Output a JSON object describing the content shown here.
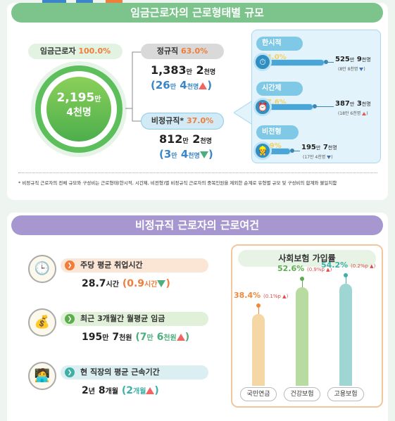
{
  "section1": {
    "title": "임금근로자의 근로형태별 규모",
    "total": {
      "label": "임금근로자",
      "pct": "100.0%",
      "value_main": "2,195",
      "value_unit": "만",
      "value_sub": "4천명"
    },
    "regular": {
      "label": "정규직",
      "pct": "63.0%",
      "value_a": "1,383",
      "unit_a": "만",
      "value_b": "2",
      "unit_b": "천명",
      "change_a": "26",
      "change_unit_a": "만",
      "change_b": "4",
      "change_unit_b": "천명",
      "direction": "up"
    },
    "nonregular": {
      "label": "비정규직*",
      "pct": "37.0%",
      "value_a": "812",
      "unit_a": "만",
      "value_b": "2",
      "unit_b": "천명",
      "change_a": "3",
      "change_unit_a": "만",
      "change_b": "4",
      "change_unit_b": "천명",
      "direction": "down"
    },
    "subtypes": [
      {
        "label": "한시적",
        "pct": "24.0%",
        "value_a": "525",
        "unit_a": "만",
        "value_b": "9",
        "unit_b": "천명",
        "note": "(8만 8천명",
        "direction": "down",
        "icon": "clock-icon"
      },
      {
        "label": "시간제",
        "pct": "17.6%",
        "value_a": "387",
        "unit_a": "만",
        "value_b": "3",
        "unit_b": "천명",
        "note": "(18만 6천명",
        "direction": "up",
        "icon": "alarm-icon"
      },
      {
        "label": "비전형",
        "pct": "8.9%",
        "value_a": "195",
        "unit_a": "만",
        "value_b": "7",
        "unit_b": "천명",
        "note": "(17만 4천명",
        "direction": "down",
        "icon": "worker-icon"
      }
    ],
    "footnote": "* 비정규직 근로자의 전체 규모와 구성비는 근로형태(한시적, 시간제, 비전형)별 비정규직 근로자의 중복인원을 제외한 순계로 유형별 규모 및 구성비의 합계와 불일치함"
  },
  "section2": {
    "title": "비정규직 근로자의 근로여건",
    "conditions": [
      {
        "label": "주당 평균 취업시간",
        "v1": "28.7",
        "u1": "시간",
        "open": "(",
        "c1": "0.9",
        "cu1": "시간",
        "close": ")",
        "direction": "down",
        "icon": "clock-person-icon",
        "color": "#fbe6d6"
      },
      {
        "label": "최근 3개월간 월평균 임금",
        "v1": "195",
        "u1": "만",
        "v2": "7",
        "u2": "천원",
        "open": "(",
        "c1": "7",
        "cu1": "만",
        "c2": "6",
        "cu2": "천원",
        "close": ")",
        "direction": "up",
        "icon": "coins-icon",
        "color": "#e1f0d8"
      },
      {
        "label": "현 직장의 평균 근속기간",
        "v1": "2",
        "u1": "년",
        "v2": "8",
        "u2": "개월",
        "open": "(",
        "c1": "2",
        "cu1": "개월",
        "close": ")",
        "direction": "up",
        "icon": "desk-worker-icon",
        "color": "#dbeff2"
      }
    ]
  },
  "chart_data": {
    "type": "bar",
    "title": "사회보험 가입률",
    "categories": [
      "국민연금",
      "건강보험",
      "고용보험"
    ],
    "values": [
      38.4,
      52.6,
      54.2
    ],
    "value_labels": [
      "38.4%",
      "52.6%",
      "54.2%"
    ],
    "change_labels": [
      "(0.1%p",
      "(0.9%p",
      "(0.2%p"
    ],
    "changes": [
      0.1,
      0.9,
      0.2
    ],
    "change_direction": [
      "up",
      "up",
      "up"
    ],
    "colors": [
      "#f5d7a6",
      "#b7dba0",
      "#9fd6d3"
    ],
    "label_colors": [
      "#f08a3a",
      "#5cae4c",
      "#3fb0a8"
    ],
    "ylim": [
      0,
      60
    ]
  },
  "colors": {
    "green": "#7cc48c",
    "purple": "#a797d0",
    "orange": "#f07d3a",
    "blue": "#7fc8e6"
  }
}
